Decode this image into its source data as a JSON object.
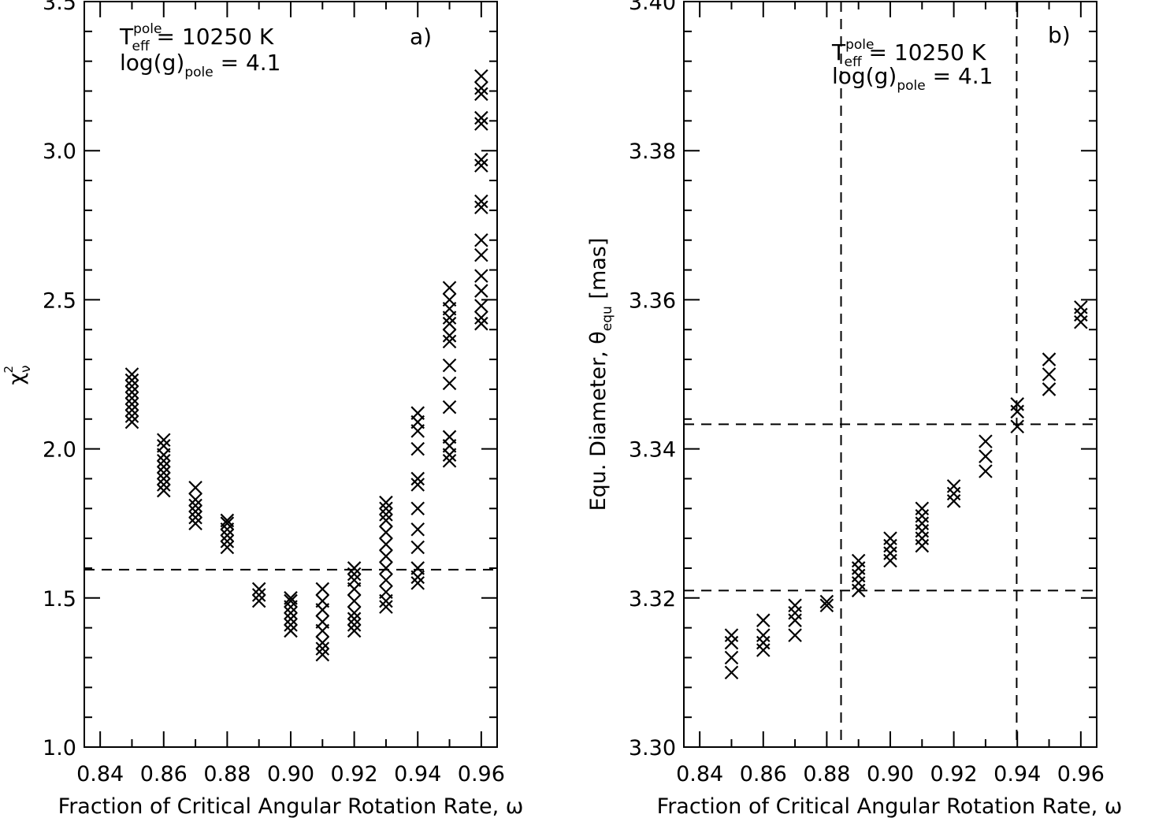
{
  "chart_data": [
    {
      "type": "scatter",
      "panel_label": "a)",
      "annotation": {
        "teff_symbol": "T",
        "teff_sub": "eff",
        "teff_sup": "pole",
        "teff_value": " = 10250 K",
        "logg_prefix": "log(g)",
        "logg_sub": "pole",
        "logg_value": " = 4.1"
      },
      "xlabel": "Fraction of Critical Angular Rotation Rate, ω",
      "ylabel_symbol": "χ",
      "ylabel_sub": "ν",
      "ylabel_sup": "2",
      "xlim": [
        0.835,
        0.965
      ],
      "ylim": [
        1.0,
        3.5
      ],
      "x_ticks": [
        0.84,
        0.86,
        0.88,
        0.9,
        0.92,
        0.94,
        0.96
      ],
      "x_tick_labels": [
        "0.84",
        "0.86",
        "0.88",
        "0.90",
        "0.92",
        "0.94",
        "0.96"
      ],
      "y_ticks": [
        1.0,
        1.5,
        2.0,
        2.5,
        3.0,
        3.5
      ],
      "y_tick_labels": [
        "1.0",
        "1.5",
        "2.0",
        "2.5",
        "3.0",
        "3.5"
      ],
      "hlines": [
        1.595
      ],
      "vlines": [],
      "points": [
        {
          "x": 0.85,
          "y": [
            2.09,
            2.11,
            2.13,
            2.15,
            2.17,
            2.19,
            2.21,
            2.23,
            2.25
          ]
        },
        {
          "x": 0.86,
          "y": [
            1.86,
            1.88,
            1.9,
            1.92,
            1.94,
            1.96,
            1.98,
            2.01,
            2.03
          ]
        },
        {
          "x": 0.87,
          "y": [
            1.75,
            1.77,
            1.79,
            1.81,
            1.83,
            1.87
          ]
        },
        {
          "x": 0.88,
          "y": [
            1.67,
            1.69,
            1.71,
            1.73,
            1.75,
            1.76
          ]
        },
        {
          "x": 0.89,
          "y": [
            1.49,
            1.51,
            1.53
          ]
        },
        {
          "x": 0.9,
          "y": [
            1.39,
            1.41,
            1.43,
            1.45,
            1.47,
            1.49,
            1.5
          ]
        },
        {
          "x": 0.91,
          "y": [
            1.31,
            1.33,
            1.35,
            1.39,
            1.42,
            1.46,
            1.49,
            1.53
          ]
        },
        {
          "x": 0.92,
          "y": [
            1.39,
            1.41,
            1.43,
            1.45,
            1.49,
            1.53,
            1.56,
            1.58,
            1.6
          ]
        },
        {
          "x": 0.93,
          "y": [
            1.47,
            1.49,
            1.52,
            1.56,
            1.6,
            1.64,
            1.68,
            1.72,
            1.76,
            1.78,
            1.8,
            1.82
          ]
        },
        {
          "x": 0.94,
          "y": [
            1.55,
            1.57,
            1.6,
            1.67,
            1.73,
            1.8,
            1.88,
            1.9,
            2.0,
            2.06,
            2.09,
            2.12
          ]
        },
        {
          "x": 0.95,
          "y": [
            1.96,
            1.98,
            2.01,
            2.04,
            2.14,
            2.22,
            2.28,
            2.36,
            2.38,
            2.42,
            2.44,
            2.47,
            2.5,
            2.54
          ]
        },
        {
          "x": 0.96,
          "y": [
            2.42,
            2.44,
            2.48,
            2.53,
            2.58,
            2.65,
            2.7,
            2.81,
            2.83,
            2.95,
            2.97,
            3.09,
            3.11,
            3.19,
            3.21,
            3.25
          ]
        }
      ]
    },
    {
      "type": "scatter",
      "panel_label": "b)",
      "annotation": {
        "teff_symbol": "T",
        "teff_sub": "eff",
        "teff_sup": "pole",
        "teff_value": " = 10250 K",
        "logg_prefix": "log(g)",
        "logg_sub": "pole",
        "logg_value": " = 4.1"
      },
      "xlabel": "Fraction of Critical Angular Rotation Rate, ω",
      "ylabel_main": "Equ. Diameter, θ",
      "ylabel_sub": "equ",
      "ylabel_unit": " [mas]",
      "xlim": [
        0.835,
        0.965
      ],
      "ylim": [
        3.3,
        3.4
      ],
      "x_ticks": [
        0.84,
        0.86,
        0.88,
        0.9,
        0.92,
        0.94,
        0.96
      ],
      "x_tick_labels": [
        "0.84",
        "0.86",
        "0.88",
        "0.90",
        "0.92",
        "0.94",
        "0.96"
      ],
      "y_ticks": [
        3.3,
        3.32,
        3.34,
        3.36,
        3.38,
        3.4
      ],
      "y_tick_labels": [
        "3.30",
        "3.32",
        "3.34",
        "3.36",
        "3.38",
        "3.40"
      ],
      "hlines": [
        3.3433,
        3.321
      ],
      "vlines": [
        0.8845,
        0.9398
      ],
      "points": [
        {
          "x": 0.85,
          "y": [
            3.31,
            3.312,
            3.314,
            3.315
          ]
        },
        {
          "x": 0.86,
          "y": [
            3.313,
            3.314,
            3.315,
            3.317
          ]
        },
        {
          "x": 0.87,
          "y": [
            3.315,
            3.317,
            3.318,
            3.319
          ]
        },
        {
          "x": 0.88,
          "y": [
            3.319,
            3.3195
          ]
        },
        {
          "x": 0.89,
          "y": [
            3.321,
            3.322,
            3.323,
            3.324,
            3.325
          ]
        },
        {
          "x": 0.9,
          "y": [
            3.325,
            3.326,
            3.327,
            3.328
          ]
        },
        {
          "x": 0.91,
          "y": [
            3.327,
            3.328,
            3.329,
            3.33,
            3.331,
            3.332
          ]
        },
        {
          "x": 0.92,
          "y": [
            3.333,
            3.334,
            3.335
          ]
        },
        {
          "x": 0.93,
          "y": [
            3.337,
            3.339,
            3.341
          ]
        },
        {
          "x": 0.94,
          "y": [
            3.343,
            3.345,
            3.346
          ]
        },
        {
          "x": 0.95,
          "y": [
            3.348,
            3.35,
            3.352
          ]
        },
        {
          "x": 0.96,
          "y": [
            3.357,
            3.358,
            3.359
          ]
        }
      ]
    }
  ]
}
